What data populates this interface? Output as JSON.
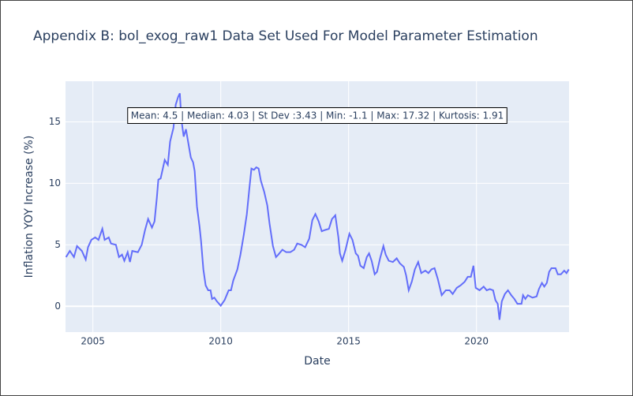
{
  "chart_data": {
    "type": "line",
    "title": "Appendix B: bol_exog_raw1 Data Set Used For Model Parameter Estimation",
    "x_label": "Date",
    "y_label": "Inflation YOY Increase (%)",
    "annotation": "Mean: 4.5 | Median: 4.03 | St Dev :3.43 | Min: -1.1 | Max: 17.32 | Kurtosis: 1.91",
    "xlim": [
      2003.93,
      2023.62
    ],
    "xticks": [
      2005,
      2010,
      2015,
      2020
    ],
    "ylim": [
      -2.1,
      18.3
    ],
    "yticks": [
      0,
      5,
      10,
      15
    ],
    "grid": true,
    "series": [
      {
        "name": "Inflation",
        "color": "#636efa",
        "x": [
          2003.95,
          2004.1,
          2004.26,
          2004.38,
          2004.57,
          2004.72,
          2004.81,
          2004.94,
          2005.09,
          2005.22,
          2005.37,
          2005.46,
          2005.62,
          2005.71,
          2005.9,
          2006.02,
          2006.14,
          2006.23,
          2006.36,
          2006.45,
          2006.54,
          2006.76,
          2006.91,
          2007.04,
          2007.16,
          2007.31,
          2007.41,
          2007.5,
          2007.56,
          2007.65,
          2007.81,
          2007.93,
          2008.02,
          2008.15,
          2008.24,
          2008.33,
          2008.4,
          2008.46,
          2008.55,
          2008.64,
          2008.73,
          2008.83,
          2008.92,
          2008.98,
          2009.07,
          2009.17,
          2009.23,
          2009.32,
          2009.41,
          2009.51,
          2009.6,
          2009.66,
          2009.75,
          2009.85,
          2010.0,
          2010.15,
          2010.31,
          2010.4,
          2010.49,
          2010.65,
          2010.77,
          2010.9,
          2011.02,
          2011.11,
          2011.2,
          2011.3,
          2011.39,
          2011.48,
          2011.57,
          2011.7,
          2011.82,
          2011.91,
          2012.04,
          2012.16,
          2012.25,
          2012.41,
          2012.56,
          2012.72,
          2012.87,
          2012.99,
          2013.15,
          2013.3,
          2013.46,
          2013.58,
          2013.7,
          2013.83,
          2013.95,
          2014.07,
          2014.23,
          2014.35,
          2014.48,
          2014.6,
          2014.66,
          2014.75,
          2014.88,
          2015.03,
          2015.15,
          2015.28,
          2015.37,
          2015.46,
          2015.59,
          2015.71,
          2015.8,
          2015.9,
          2016.02,
          2016.11,
          2016.23,
          2016.36,
          2016.45,
          2016.57,
          2016.73,
          2016.88,
          2017.0,
          2017.16,
          2017.25,
          2017.35,
          2017.47,
          2017.59,
          2017.72,
          2017.84,
          2018.0,
          2018.12,
          2018.24,
          2018.36,
          2018.49,
          2018.64,
          2018.8,
          2018.95,
          2019.07,
          2019.23,
          2019.38,
          2019.54,
          2019.66,
          2019.78,
          2019.88,
          2019.97,
          2020.12,
          2020.28,
          2020.4,
          2020.52,
          2020.65,
          2020.74,
          2020.83,
          2020.9,
          2020.99,
          2021.11,
          2021.23,
          2021.36,
          2021.48,
          2021.6,
          2021.76,
          2021.82,
          2021.91,
          2022.01,
          2022.19,
          2022.35,
          2022.44,
          2022.56,
          2022.65,
          2022.75,
          2022.84,
          2022.93,
          2023.09,
          2023.18,
          2023.3,
          2023.43,
          2023.52,
          2023.61
        ],
        "values": [
          4.0,
          4.5,
          4.0,
          4.9,
          4.5,
          3.8,
          4.8,
          5.4,
          5.6,
          5.4,
          6.3,
          5.4,
          5.6,
          5.1,
          5.0,
          4.0,
          4.2,
          3.7,
          4.4,
          3.6,
          4.5,
          4.4,
          5.0,
          6.2,
          7.1,
          6.4,
          6.9,
          8.8,
          10.3,
          10.4,
          11.9,
          11.5,
          13.4,
          14.5,
          16.4,
          17.0,
          17.32,
          15.2,
          13.8,
          14.4,
          13.3,
          12.1,
          11.7,
          11.0,
          8.1,
          6.5,
          5.3,
          3.0,
          1.7,
          1.3,
          1.3,
          0.6,
          0.7,
          0.4,
          0.05,
          0.5,
          1.3,
          1.3,
          2.1,
          3.0,
          4.2,
          5.8,
          7.5,
          9.4,
          11.2,
          11.1,
          11.3,
          11.2,
          10.2,
          9.3,
          8.2,
          6.7,
          4.9,
          4.0,
          4.2,
          4.6,
          4.4,
          4.4,
          4.6,
          5.1,
          5.0,
          4.8,
          5.5,
          7.0,
          7.5,
          6.9,
          6.1,
          6.2,
          6.3,
          7.1,
          7.4,
          5.6,
          4.3,
          3.7,
          4.6,
          5.9,
          5.4,
          4.3,
          4.1,
          3.3,
          3.1,
          4.0,
          4.3,
          3.7,
          2.6,
          2.8,
          3.9,
          4.9,
          4.2,
          3.7,
          3.6,
          3.9,
          3.5,
          3.2,
          2.5,
          1.3,
          2.0,
          3.0,
          3.6,
          2.7,
          2.9,
          2.7,
          3.0,
          3.1,
          2.2,
          0.9,
          1.3,
          1.3,
          1.0,
          1.5,
          1.7,
          2.0,
          2.4,
          2.4,
          3.3,
          1.5,
          1.3,
          1.6,
          1.3,
          1.4,
          1.3,
          0.5,
          0.2,
          -1.1,
          0.4,
          1.0,
          1.3,
          0.9,
          0.6,
          0.2,
          0.2,
          0.9,
          0.6,
          0.9,
          0.7,
          0.8,
          1.4,
          1.9,
          1.6,
          1.9,
          2.8,
          3.1,
          3.1,
          2.6,
          2.6,
          2.9,
          2.7,
          3.0
        ]
      }
    ]
  }
}
